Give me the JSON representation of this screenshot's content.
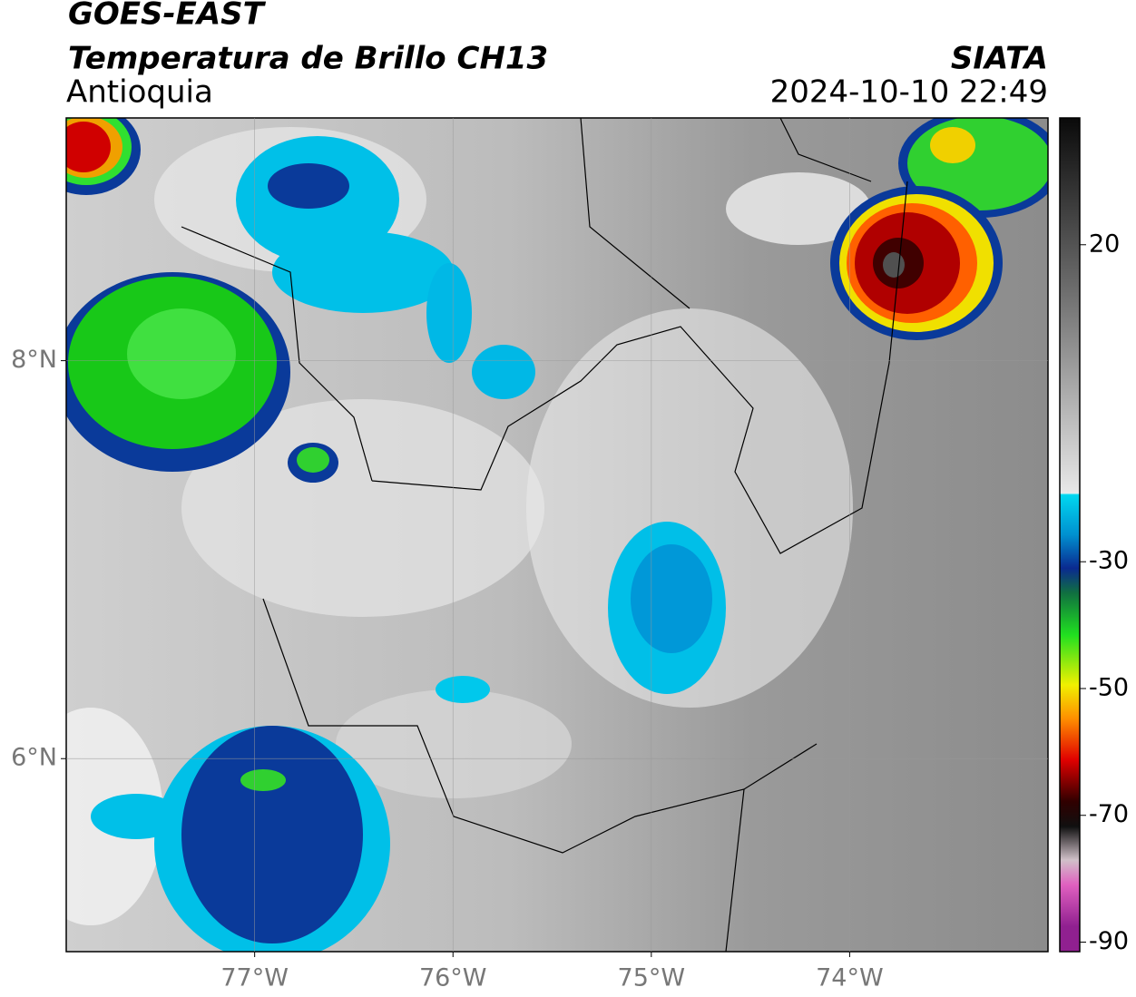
{
  "header": {
    "title": "GOES-EAST",
    "subtitle": "Temperatura de Brillo CH13",
    "region": "Antioquia",
    "source": "SIATA",
    "datetime": "2024-10-10 22:49"
  },
  "map": {
    "xlim": [
      -77.95,
      -73
    ],
    "ylim": [
      5.03,
      9.22
    ],
    "xticks": [
      {
        "value": -77,
        "label": "77°W"
      },
      {
        "value": -76,
        "label": "76°W"
      },
      {
        "value": -75,
        "label": "75°W"
      },
      {
        "value": -74,
        "label": "74°W"
      }
    ],
    "yticks": [
      {
        "value": 8,
        "label": "8°N"
      },
      {
        "value": 6,
        "label": "6°N"
      }
    ],
    "grid": true
  },
  "colorbar": {
    "lim": [
      -91.5,
      40
    ],
    "ticks": [
      20,
      -30,
      -50,
      -70,
      -90
    ]
  }
}
